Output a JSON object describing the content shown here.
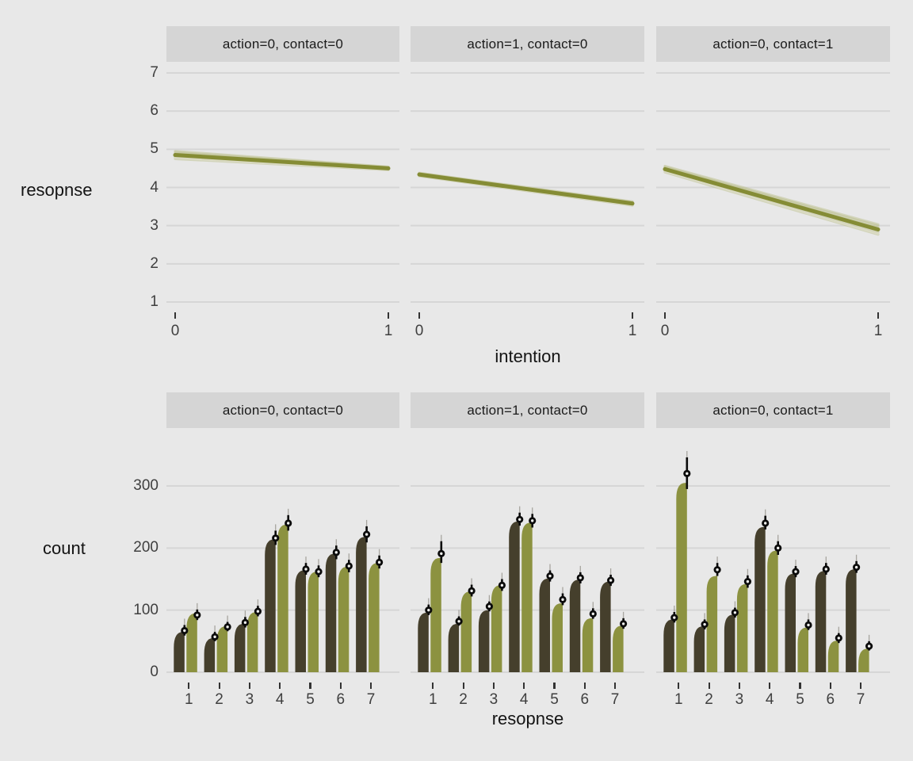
{
  "figure": {
    "background": "#e8e8e8"
  },
  "colors": {
    "panel_bg": "#e8e8e8",
    "strip_bg": "#d5d5d5",
    "strip_text": "#1a1a1a",
    "gridline": "#d6d6d6",
    "axis_text": "#3f3f3f",
    "title_text": "#141414",
    "dark_bar": "#453f2c",
    "olive_bar": "#8c9240",
    "trend_line": "#858c35",
    "trend_halo": "#b9bd85",
    "light_strand": "#dcdcc6",
    "interval": "#0b0b0b",
    "point_fill": "#0b0b0b",
    "point_center": "#f2f2ef"
  },
  "chart_data": [
    {
      "type": "line",
      "title": "",
      "xlabel": "intention",
      "ylabel": "resopnse",
      "xticks": [
        0,
        1
      ],
      "yticks": [
        1,
        2,
        3,
        4,
        5,
        6,
        7
      ],
      "ylim": [
        1,
        7
      ],
      "grid": "horizontal",
      "legend": "none",
      "facets": [
        {
          "label": "action=0, contact=0",
          "line": {
            "x": [
              0,
              1
            ],
            "y": [
              4.85,
              4.5
            ],
            "spread": [
              0.1,
              0.04
            ]
          }
        },
        {
          "label": "action=1, contact=0",
          "line": {
            "x": [
              0,
              1
            ],
            "y": [
              4.34,
              3.58
            ],
            "spread": [
              0.04,
              0.05
            ]
          }
        },
        {
          "label": "action=0, contact=1",
          "line": {
            "x": [
              0,
              1
            ],
            "y": [
              4.48,
              2.9
            ],
            "spread": [
              0.08,
              0.13
            ]
          }
        }
      ]
    },
    {
      "type": "bar",
      "title": "",
      "xlabel": "resopnse",
      "ylabel": "count",
      "xticks": [
        1,
        2,
        3,
        4,
        5,
        6,
        7
      ],
      "yticks": [
        0,
        100,
        200,
        300
      ],
      "ylim": [
        0,
        340
      ],
      "grid": "horizontal",
      "legend": "none",
      "series_names": [
        "dark",
        "olive"
      ],
      "facets": [
        {
          "label": "action=0, contact=0",
          "categories": [
            1,
            2,
            3,
            4,
            5,
            6,
            7
          ],
          "dark": {
            "values": [
              65,
              55,
              78,
              214,
              164,
              191,
              218
            ],
            "points": [
              67,
              57,
              80,
              216,
              166,
              193,
              222
            ],
            "ci_lo": [
              59,
              50,
              72,
              205,
              157,
              182,
              209
            ],
            "ci_hi": [
              76,
              65,
              89,
              228,
              176,
              204,
              235
            ]
          },
          "olive": {
            "values": [
              95,
              74,
              97,
              238,
              162,
              170,
              176
            ],
            "points": [
              92,
              73,
              98,
              240,
              162,
              171,
              177
            ],
            "ci_lo": [
              84,
              66,
              90,
              228,
              153,
              161,
              167
            ],
            "ci_hi": [
              101,
              81,
              107,
              253,
              172,
              181,
              188
            ]
          }
        },
        {
          "label": "action=1, contact=0",
          "categories": [
            1,
            2,
            3,
            4,
            5,
            6,
            7
          ],
          "dark": {
            "values": [
              96,
              78,
              100,
              243,
              151,
              149,
              146
            ],
            "points": [
              100,
              82,
              106,
              246,
              155,
              152,
              148
            ],
            "ci_lo": [
              92,
              75,
              98,
              236,
              146,
              143,
              139
            ],
            "ci_hi": [
              109,
              90,
              114,
              257,
              164,
              161,
              157
            ]
          },
          "olive": {
            "values": [
              184,
              130,
              140,
              241,
              111,
              87,
              75
            ],
            "points": [
              191,
              131,
              140,
              244,
              117,
              94,
              78
            ],
            "ci_lo": [
              176,
              122,
              131,
              233,
              108,
              86,
              70
            ],
            "ci_hi": [
              211,
              141,
              150,
              255,
              127,
              103,
              87
            ]
          }
        },
        {
          "label": "action=0, contact=1",
          "categories": [
            1,
            2,
            3,
            4,
            5,
            6,
            7
          ],
          "dark": {
            "values": [
              85,
              74,
              93,
              234,
              159,
              163,
              166
            ],
            "points": [
              88,
              77,
              96,
              240,
              162,
              166,
              169
            ],
            "ci_lo": [
              80,
              69,
              88,
              230,
              153,
              157,
              160
            ],
            "ci_hi": [
              97,
              85,
              104,
              252,
              171,
              176,
              179
            ]
          },
          "olive": {
            "values": [
              305,
              155,
              142,
              196,
              72,
              51,
              38
            ],
            "points": [
              320,
              165,
              146,
              200,
              76,
              55,
              42
            ],
            "ci_lo": [
              295,
              155,
              136,
              189,
              68,
              47,
              35
            ],
            "ci_hi": [
              346,
              176,
              156,
              211,
              85,
              63,
              50
            ]
          }
        }
      ]
    }
  ]
}
